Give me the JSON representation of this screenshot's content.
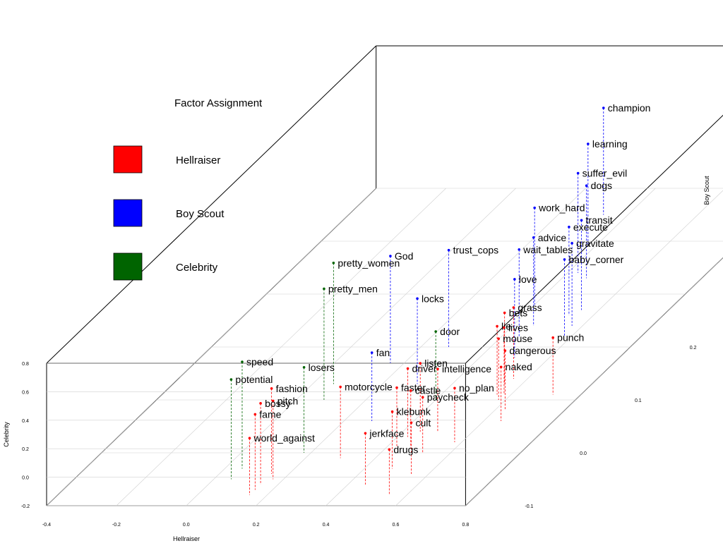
{
  "chart_data": {
    "type": "scatter",
    "axes": {
      "x": {
        "label": "Hellraiser",
        "ticks": [
          "-0.4",
          "-0.2",
          "0.0",
          "0.2",
          "0.4",
          "0.6",
          "0.8"
        ]
      },
      "y": {
        "label": "Boy Scout",
        "ticks": [
          "-0.1",
          "0.0",
          "0.1",
          "0.2",
          "0.3",
          "0.4",
          "0.5"
        ]
      },
      "z": {
        "label": "Celebrity",
        "ticks": [
          "-0.2",
          "0.0",
          "0.2",
          "0.4",
          "0.6",
          "0.8"
        ]
      }
    },
    "legend": {
      "title": "Factor Assignment",
      "position": "top-left",
      "items": [
        {
          "label": "Hellraiser",
          "color": "#ff0000"
        },
        {
          "label": "Boy Scout",
          "color": "#0000ff"
        },
        {
          "label": "Celebrity",
          "color": "#006400"
        }
      ]
    },
    "colors": {
      "Hellraiser": "#ff0000",
      "Boy Scout": "#0000ff",
      "Celebrity": "#006400"
    },
    "points": [
      {
        "label": "champion",
        "factor": "Boy Scout",
        "x": 0.33,
        "y": 0.45,
        "z": 0.55
      },
      {
        "label": "learning",
        "factor": "Boy Scout",
        "x": 0.38,
        "y": 0.39,
        "z": 0.52
      },
      {
        "label": "suffer_evil",
        "factor": "Boy Scout",
        "x": 0.43,
        "y": 0.34,
        "z": 0.5
      },
      {
        "label": "dogs",
        "factor": "Boy Scout",
        "x": 0.47,
        "y": 0.33,
        "z": 0.45
      },
      {
        "label": "work_hard",
        "factor": "Boy Scout",
        "x": 0.4,
        "y": 0.28,
        "z": 0.48
      },
      {
        "label": "transit",
        "factor": "Boy Scout",
        "x": 0.55,
        "y": 0.27,
        "z": 0.43
      },
      {
        "label": "execute",
        "factor": "Boy Scout",
        "x": 0.53,
        "y": 0.26,
        "z": 0.42
      },
      {
        "label": "advice",
        "factor": "Boy Scout",
        "x": 0.46,
        "y": 0.24,
        "z": 0.42
      },
      {
        "label": "gravitate",
        "factor": "Boy Scout",
        "x": 0.57,
        "y": 0.24,
        "z": 0.38
      },
      {
        "label": "wait_tables",
        "factor": "Boy Scout",
        "x": 0.45,
        "y": 0.22,
        "z": 0.41
      },
      {
        "label": "baby_corner",
        "factor": "Boy Scout",
        "x": 0.58,
        "y": 0.22,
        "z": 0.34
      },
      {
        "label": "trust_cops",
        "factor": "Boy Scout",
        "x": 0.28,
        "y": 0.2,
        "z": 0.48
      },
      {
        "label": "love",
        "factor": "Boy Scout",
        "x": 0.5,
        "y": 0.18,
        "z": 0.35
      },
      {
        "label": "God",
        "factor": "Boy Scout",
        "x": 0.16,
        "y": 0.17,
        "z": 0.55
      },
      {
        "label": "locks",
        "factor": "Boy Scout",
        "x": 0.3,
        "y": 0.13,
        "z": 0.4
      },
      {
        "label": "fan",
        "factor": "Boy Scout",
        "x": 0.28,
        "y": 0.06,
        "z": 0.28
      },
      {
        "label": "pretty_women",
        "factor": "Celebrity",
        "x": 0.06,
        "y": 0.13,
        "z": 0.65
      },
      {
        "label": "pretty_men",
        "factor": "Celebrity",
        "x": 0.08,
        "y": 0.1,
        "z": 0.58
      },
      {
        "label": "door",
        "factor": "Celebrity",
        "x": 0.4,
        "y": 0.1,
        "z": 0.28
      },
      {
        "label": "losers",
        "factor": "Celebrity",
        "x": 0.18,
        "y": 0.0,
        "z": 0.4
      },
      {
        "label": "speed",
        "factor": "Celebrity",
        "x": 0.05,
        "y": -0.03,
        "z": 0.55
      },
      {
        "label": "potential",
        "factor": "Celebrity",
        "x": 0.05,
        "y": -0.05,
        "z": 0.5
      },
      {
        "label": "grass",
        "factor": "Hellraiser",
        "x": 0.56,
        "y": 0.14,
        "z": 0.3
      },
      {
        "label": "bets",
        "factor": "Hellraiser",
        "x": 0.55,
        "y": 0.13,
        "z": 0.3
      },
      {
        "label": "lie",
        "factor": "Hellraiser",
        "x": 0.56,
        "y": 0.11,
        "z": 0.28
      },
      {
        "label": "lives",
        "factor": "Hellraiser",
        "x": 0.58,
        "y": 0.11,
        "z": 0.27
      },
      {
        "label": "mouse",
        "factor": "Hellraiser",
        "x": 0.58,
        "y": 0.1,
        "z": 0.23
      },
      {
        "label": "punch",
        "factor": "Hellraiser",
        "x": 0.72,
        "y": 0.11,
        "z": 0.2
      },
      {
        "label": "dangerous",
        "factor": "Hellraiser",
        "x": 0.63,
        "y": 0.08,
        "z": 0.22
      },
      {
        "label": "naked",
        "factor": "Hellraiser",
        "x": 0.65,
        "y": 0.06,
        "z": 0.18
      },
      {
        "label": "listen",
        "factor": "Hellraiser",
        "x": 0.45,
        "y": 0.04,
        "z": 0.28
      },
      {
        "label": "intelligence",
        "factor": "Hellraiser",
        "x": 0.5,
        "y": 0.04,
        "z": 0.24
      },
      {
        "label": "driver",
        "factor": "Hellraiser",
        "x": 0.43,
        "y": 0.03,
        "z": 0.28
      },
      {
        "label": "no_plan",
        "factor": "Hellraiser",
        "x": 0.58,
        "y": 0.02,
        "z": 0.18
      },
      {
        "label": "faster",
        "factor": "Hellraiser",
        "x": 0.43,
        "y": 0.01,
        "z": 0.22
      },
      {
        "label": "castle",
        "factor": "Hellraiser",
        "x": 0.47,
        "y": 0.01,
        "z": 0.2
      },
      {
        "label": "paycheck",
        "factor": "Hellraiser",
        "x": 0.52,
        "y": 0.0,
        "z": 0.19
      },
      {
        "label": "motorcycle",
        "factor": "Hellraiser",
        "x": 0.3,
        "y": -0.01,
        "z": 0.3
      },
      {
        "label": "klebunk",
        "factor": "Hellraiser",
        "x": 0.48,
        "y": -0.03,
        "z": 0.2
      },
      {
        "label": "fashion",
        "factor": "Hellraiser",
        "x": 0.15,
        "y": -0.04,
        "z": 0.4
      },
      {
        "label": "cult",
        "factor": "Hellraiser",
        "x": 0.55,
        "y": -0.04,
        "z": 0.16
      },
      {
        "label": "pitch",
        "factor": "Hellraiser",
        "x": 0.17,
        "y": -0.05,
        "z": 0.35
      },
      {
        "label": "bossy",
        "factor": "Hellraiser",
        "x": 0.15,
        "y": -0.06,
        "z": 0.37
      },
      {
        "label": "jerkface",
        "factor": "Hellraiser",
        "x": 0.45,
        "y": -0.06,
        "z": 0.16
      },
      {
        "label": "fame",
        "factor": "Hellraiser",
        "x": 0.15,
        "y": -0.07,
        "z": 0.33
      },
      {
        "label": "drugs",
        "factor": "Hellraiser",
        "x": 0.55,
        "y": -0.08,
        "z": 0.12
      },
      {
        "label": "world_against",
        "factor": "Hellraiser",
        "x": 0.15,
        "y": -0.08,
        "z": 0.2
      }
    ]
  }
}
